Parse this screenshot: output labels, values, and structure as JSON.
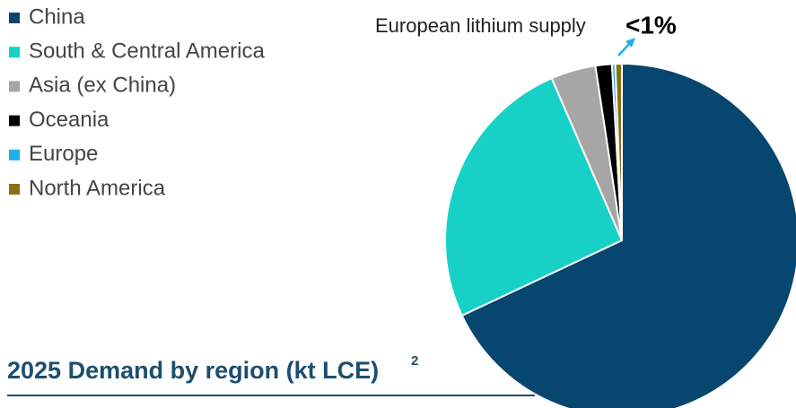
{
  "chart_data": {
    "type": "pie",
    "title": "2025 Demand by region (kt LCE)",
    "title_superscript": "2",
    "annotation": "European lithium supply",
    "annotation_value": "<1%",
    "categories": [
      "China",
      "South & Central America",
      "Asia (ex China)",
      "Oceania",
      "Europe",
      "North America"
    ],
    "values": [
      68,
      25.5,
      4.1,
      1.5,
      0.3,
      0.6
    ],
    "colors": [
      "#07466f",
      "#17d1c6",
      "#a6a6a6",
      "#000000",
      "#1bb1ea",
      "#8c7012"
    ],
    "legend": "top-left"
  }
}
